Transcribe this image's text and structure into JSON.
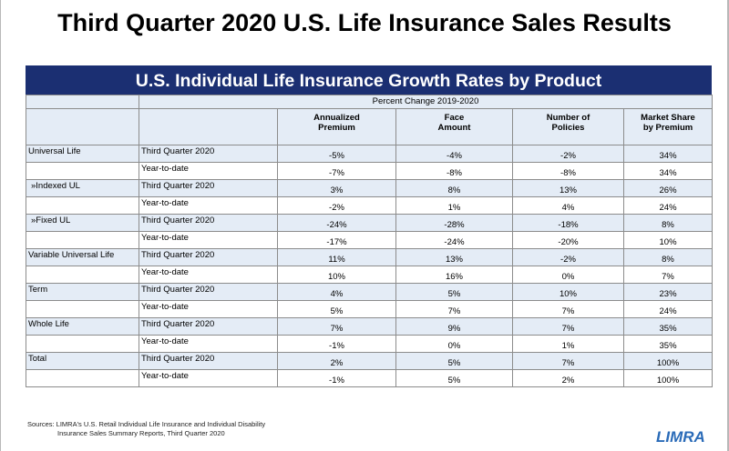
{
  "page": {
    "title": "Third Quarter 2020 U.S. Life Insurance Sales Results"
  },
  "table": {
    "banner": "U.S. Individual Life Insurance Growth Rates by Product",
    "percent_change_label": "Percent Change 2019-2020",
    "column_headers": [
      [
        "Annualized",
        "Premium"
      ],
      [
        "Face",
        "Amount"
      ],
      [
        "Number of",
        "Policies"
      ],
      [
        "Market Share",
        "by Premium"
      ]
    ],
    "rows": [
      {
        "product": "Universal Life",
        "period": "Third Quarter 2020",
        "annualized_premium": "-5%",
        "face_amount": "-4%",
        "number_of_policies": "-2%",
        "market_share": "34%"
      },
      {
        "product": "",
        "period": "Year-to-date",
        "annualized_premium": "-7%",
        "face_amount": "-8%",
        "number_of_policies": "-8%",
        "market_share": "34%"
      },
      {
        "product": "»Indexed UL",
        "period": "Third Quarter 2020",
        "annualized_premium": "3%",
        "face_amount": "8%",
        "number_of_policies": "13%",
        "market_share": "26%"
      },
      {
        "product": "",
        "period": "Year-to-date",
        "annualized_premium": "-2%",
        "face_amount": "1%",
        "number_of_policies": "4%",
        "market_share": "24%"
      },
      {
        "product": "»Fixed UL",
        "period": "Third Quarter 2020",
        "annualized_premium": "-24%",
        "face_amount": "-28%",
        "number_of_policies": "-18%",
        "market_share": "8%"
      },
      {
        "product": "",
        "period": "Year-to-date",
        "annualized_premium": "-17%",
        "face_amount": "-24%",
        "number_of_policies": "-20%",
        "market_share": "10%"
      },
      {
        "product": "Variable Universal Life",
        "period": "Third Quarter 2020",
        "annualized_premium": "11%",
        "face_amount": "13%",
        "number_of_policies": "-2%",
        "market_share": "8%"
      },
      {
        "product": "",
        "period": "Year-to-date",
        "annualized_premium": "10%",
        "face_amount": "16%",
        "number_of_policies": "0%",
        "market_share": "7%"
      },
      {
        "product": "Term",
        "period": "Third Quarter 2020",
        "annualized_premium": "4%",
        "face_amount": "5%",
        "number_of_policies": "10%",
        "market_share": "23%"
      },
      {
        "product": "",
        "period": "Year-to-date",
        "annualized_premium": "5%",
        "face_amount": "7%",
        "number_of_policies": "7%",
        "market_share": "24%"
      },
      {
        "product": "Whole Life",
        "period": "Third Quarter 2020",
        "annualized_premium": "7%",
        "face_amount": "9%",
        "number_of_policies": "7%",
        "market_share": "35%"
      },
      {
        "product": "",
        "period": "Year-to-date",
        "annualized_premium": "-1%",
        "face_amount": "0%",
        "number_of_policies": "1%",
        "market_share": "35%"
      },
      {
        "product": "Total",
        "period": "Third Quarter 2020",
        "annualized_premium": "2%",
        "face_amount": "5%",
        "number_of_policies": "7%",
        "market_share": "100%"
      },
      {
        "product": "",
        "period": "Year-to-date",
        "annualized_premium": "-1%",
        "face_amount": "5%",
        "number_of_policies": "2%",
        "market_share": "100%"
      }
    ]
  },
  "footer": {
    "sources_line1": "Sources: LIMRA's U.S. Retail Individual Life Insurance and Individual Disability",
    "sources_line2": "Insurance Sales Summary Reports, Third Quarter 2020",
    "logo_text": "LIMRA",
    "logo_color": "#2a6bb8"
  },
  "colors": {
    "banner": "#1b2f72",
    "band": "#e4ecf6"
  }
}
